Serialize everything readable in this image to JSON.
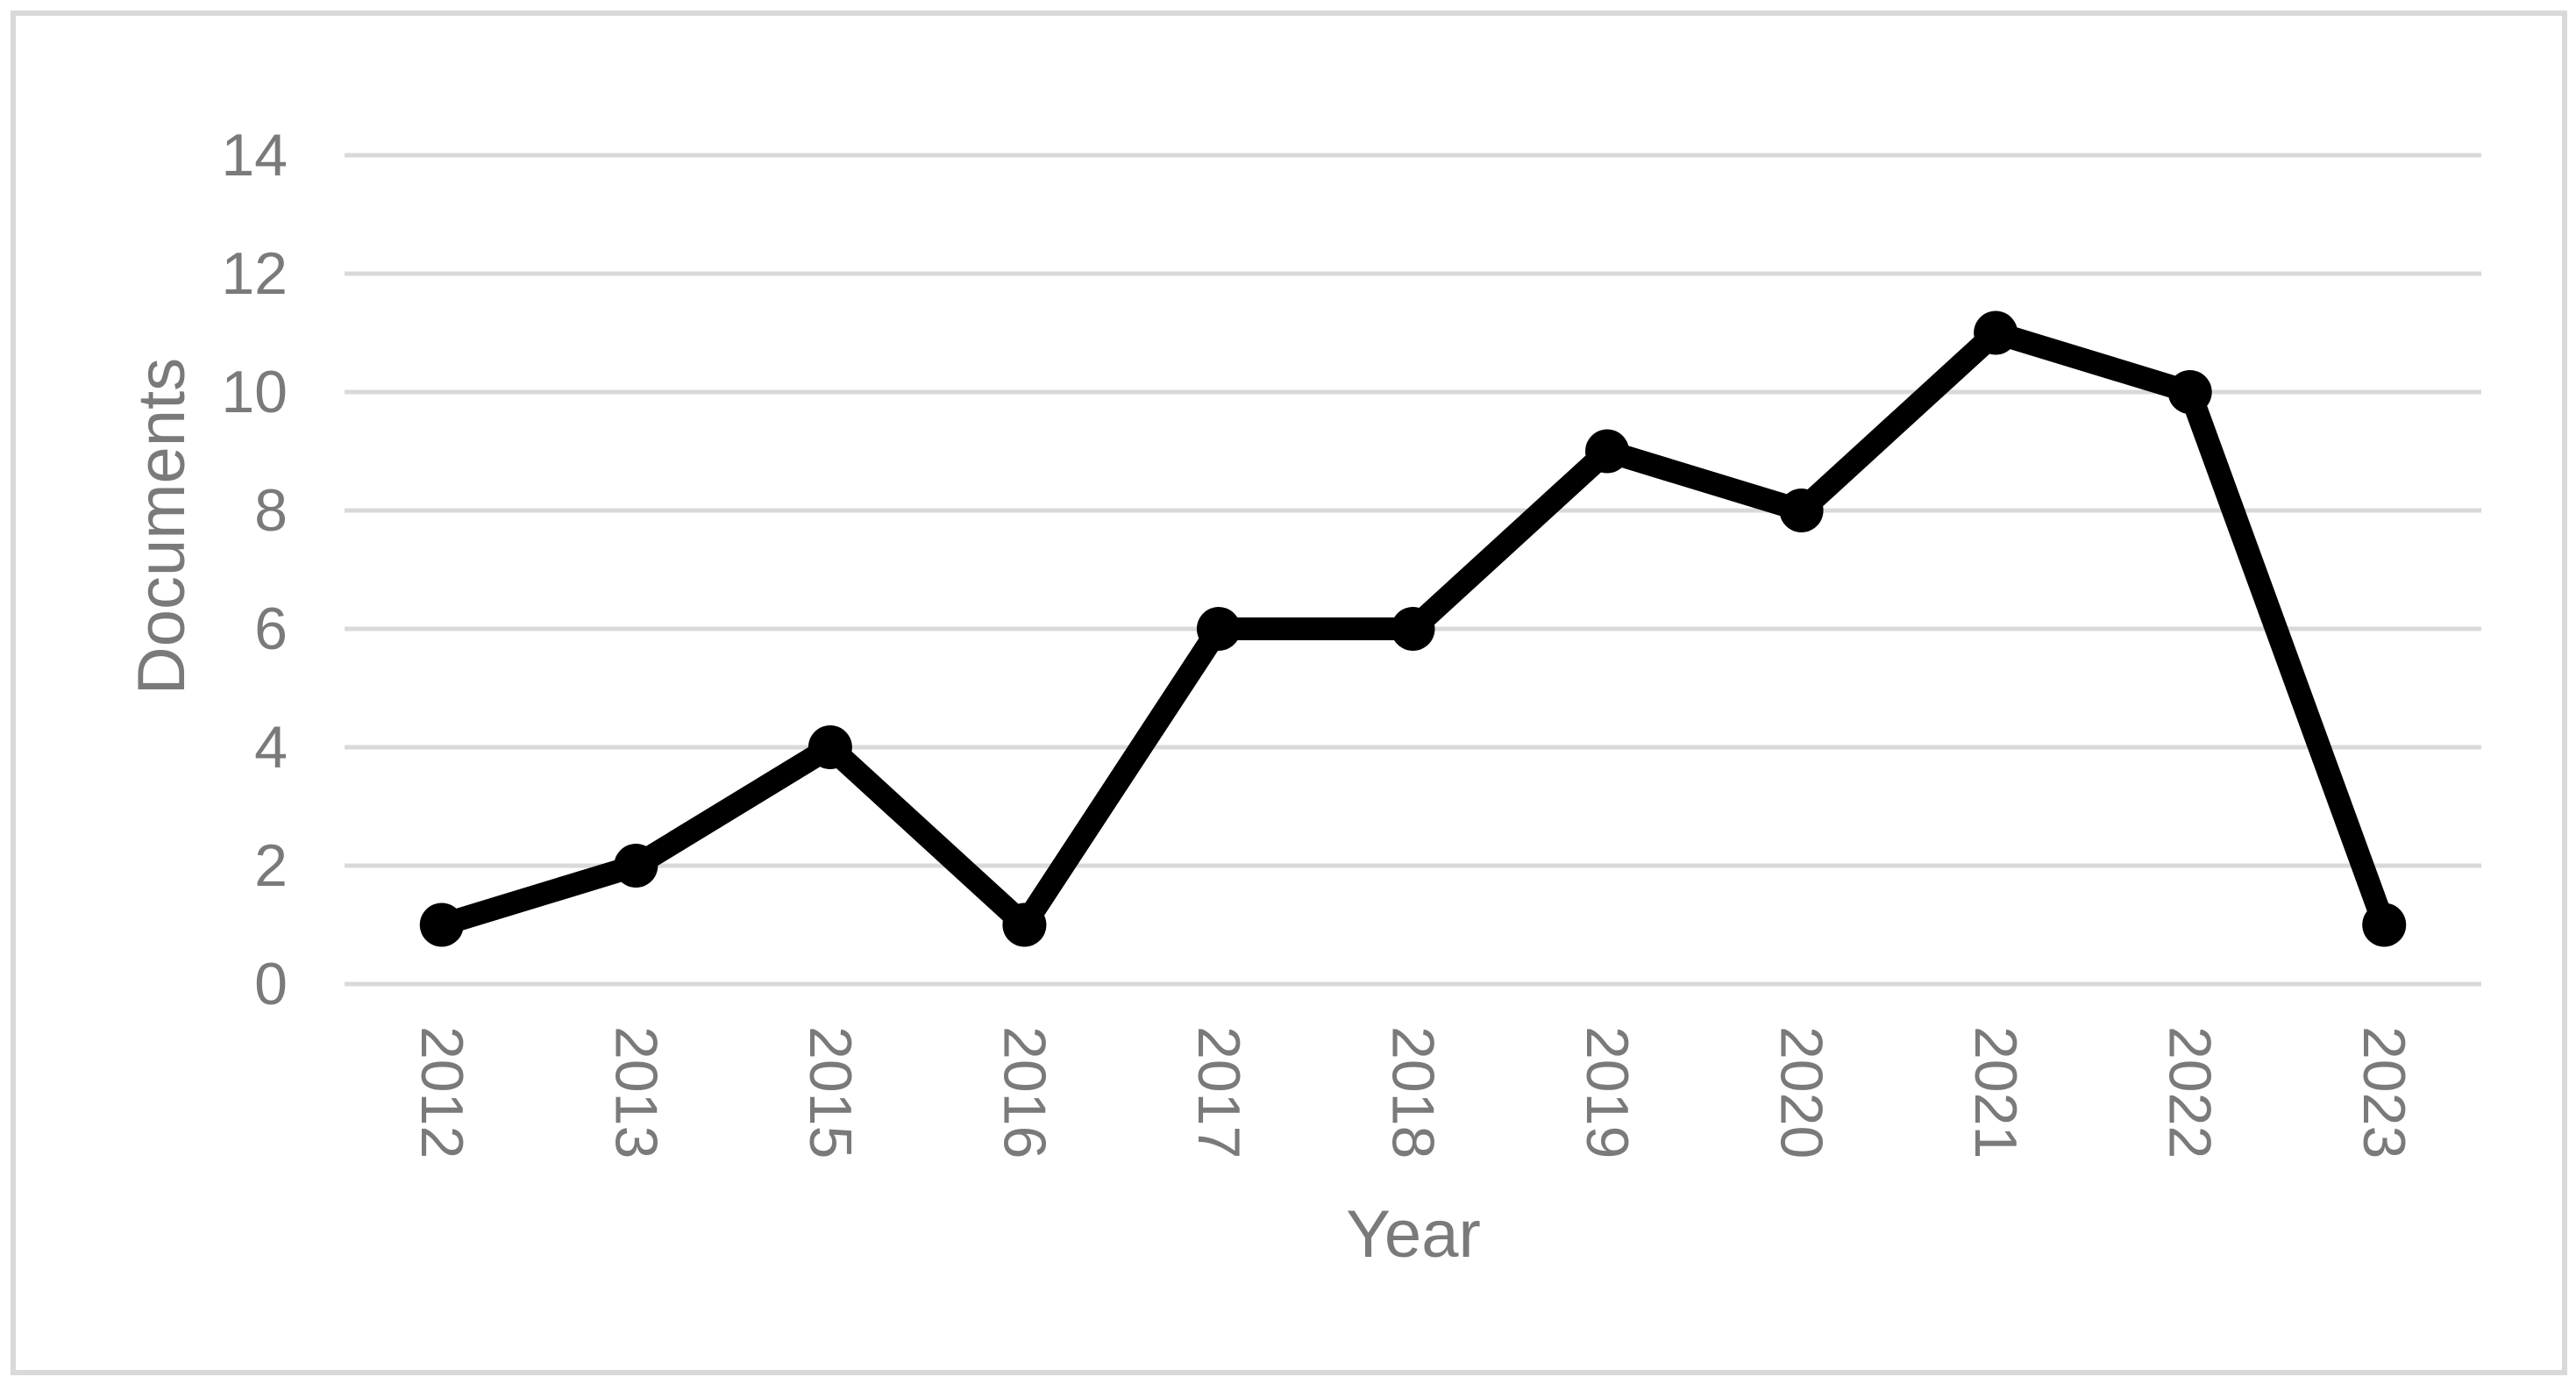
{
  "figure": {
    "background_color": "#ffffff",
    "border_color": "#d9d9d9"
  },
  "chart_data": {
    "type": "line",
    "title": "",
    "categories": [
      "2012",
      "2013",
      "2015",
      "2016",
      "2017",
      "2018",
      "2019",
      "2020",
      "2021",
      "2022",
      "2023"
    ],
    "values": [
      1,
      2,
      4,
      1,
      6,
      6,
      9,
      8,
      11,
      10,
      1
    ],
    "xlabel": "Year",
    "ylabel": "Documents",
    "ylim": [
      0,
      14
    ],
    "yticks": [
      0,
      2,
      4,
      6,
      8,
      10,
      12,
      14
    ],
    "grid": "horizontal",
    "legend": "none",
    "series_color": "#000000",
    "marker": "circle",
    "label_color": "#7a7a7a",
    "gridline_color": "#d9d9d9",
    "x_tick_rotation_deg": 90
  }
}
